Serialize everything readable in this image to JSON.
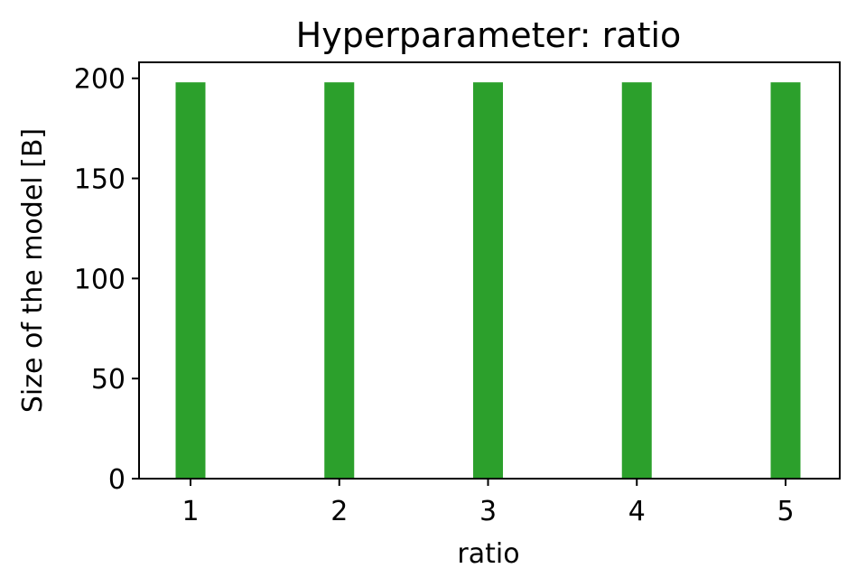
{
  "chart_data": {
    "type": "bar",
    "title": "Hyperparameter: ratio",
    "xlabel": "ratio",
    "ylabel": "Size of the model [B]",
    "categories": [
      "1",
      "2",
      "3",
      "4",
      "5"
    ],
    "values": [
      198,
      198,
      198,
      198,
      198
    ],
    "ylim": [
      0,
      208
    ],
    "yticks": [
      0,
      50,
      100,
      150,
      200
    ],
    "bar_color": "#2ca02c",
    "grid": false,
    "legend": "none"
  }
}
